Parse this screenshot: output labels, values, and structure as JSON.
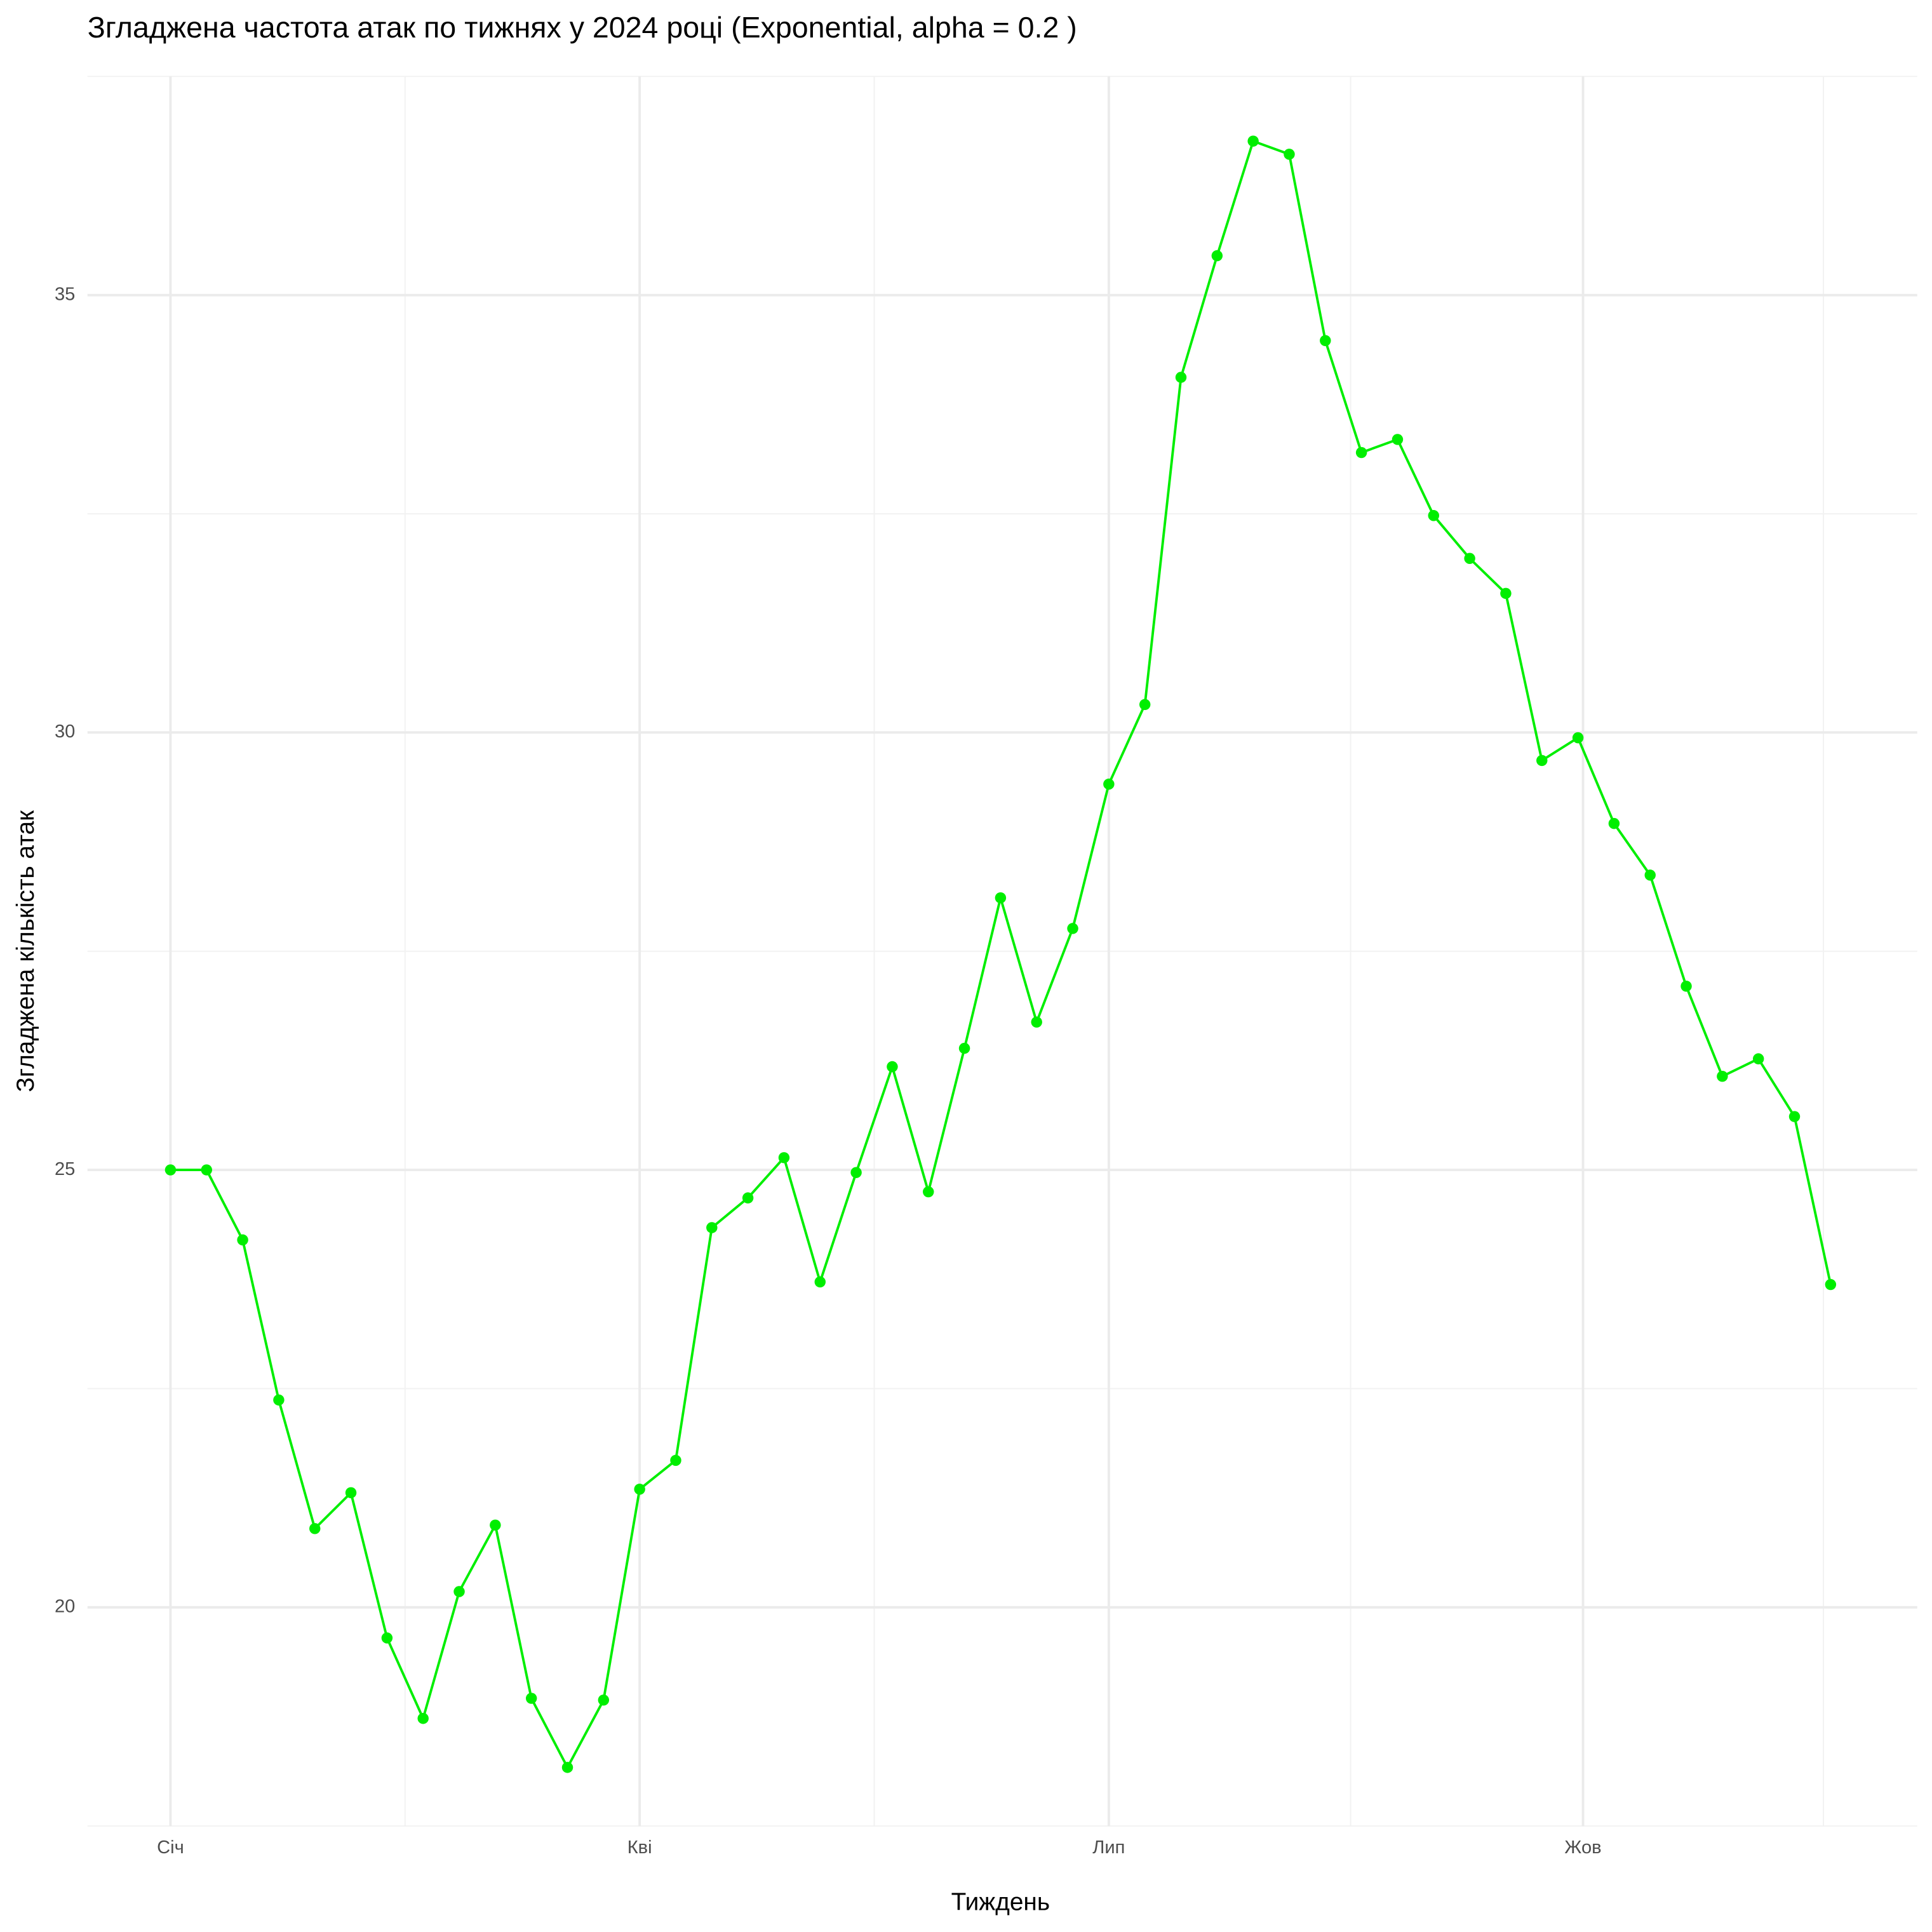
{
  "chart_data": {
    "type": "line",
    "title": "Згладжена частота атак по тижнях у 2024 році (Exponential, alpha = 0.2 )",
    "x_label": "Тиждень",
    "y_label": "Згладжена кількість атак",
    "x": [
      1,
      2,
      3,
      4,
      5,
      6,
      7,
      8,
      9,
      10,
      11,
      12,
      13,
      14,
      15,
      16,
      17,
      18,
      19,
      20,
      21,
      22,
      23,
      24,
      25,
      26,
      27,
      28,
      29,
      30,
      31,
      32,
      33,
      34,
      35,
      36,
      37,
      38,
      39,
      40,
      41,
      42,
      43,
      44,
      45,
      46,
      47
    ],
    "series": [
      {
        "name": "Згладжена кількість атак",
        "color": "#00ee00",
        "values": [
          25.0,
          25.0,
          24.2,
          22.37,
          20.9,
          21.31,
          19.65,
          18.73,
          20.18,
          20.94,
          18.96,
          18.17,
          18.94,
          21.35,
          21.68,
          24.34,
          24.68,
          25.14,
          23.72,
          24.97,
          26.18,
          24.75,
          26.39,
          28.11,
          26.69,
          27.76,
          29.41,
          30.32,
          34.06,
          35.45,
          36.76,
          36.61,
          34.48,
          33.2,
          33.35,
          32.48,
          31.99,
          31.59,
          29.68,
          29.94,
          28.96,
          28.37,
          27.1,
          26.07,
          26.27,
          25.61,
          23.69
        ]
      }
    ],
    "xlim": [
      -1.3,
      49.4
    ],
    "xticks": [
      {
        "value": 1,
        "label": "Січ"
      },
      {
        "value": 14,
        "label": "Кві"
      },
      {
        "value": 27,
        "label": "Лип"
      },
      {
        "value": 40.14,
        "label": "Жов"
      }
    ],
    "xminorticks": [
      7.5,
      20.5,
      33.7,
      46.8
    ],
    "ylim": [
      17.5,
      37.5
    ],
    "yticks": [
      20,
      25,
      30,
      35
    ],
    "yminorticks": [
      17.5,
      22.5,
      27.5,
      32.5,
      37.5
    ],
    "grid": true
  }
}
